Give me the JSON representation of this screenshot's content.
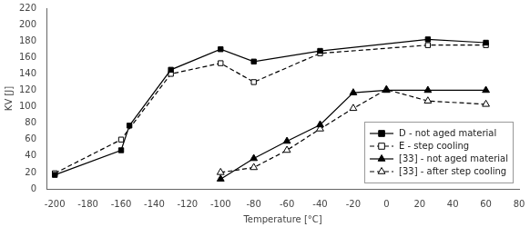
{
  "chart_data": {
    "type": "line",
    "xlabel": "Temperature [°C]",
    "ylabel": "KV [J]",
    "series": [
      {
        "name": "D - not aged material",
        "color": "black",
        "marker": "square",
        "line_style": "solid",
        "x": [
          -200,
          -160,
          -155,
          -130,
          -100,
          -80,
          -40,
          25,
          60
        ],
        "values": [
          17,
          47,
          77,
          145,
          170,
          155,
          168,
          182,
          178
        ]
      },
      {
        "name": "E - step cooling",
        "color": "black",
        "marker": "open_square",
        "line_style": "dashed",
        "x": [
          -200,
          -160,
          -130,
          -100,
          -80,
          -40,
          25,
          60
        ],
        "values": [
          19,
          60,
          140,
          153,
          130,
          165,
          175,
          175
        ]
      },
      {
        "name": "[33] - not aged material",
        "color": "black",
        "marker": "triangle",
        "line_style": "solid",
        "x": [
          -100,
          -80,
          -60,
          -40,
          -20,
          0,
          25,
          60
        ],
        "values": [
          12,
          37,
          58,
          78,
          117,
          120,
          120,
          120
        ]
      },
      {
        "name": "[33] - after step cooling",
        "color": "black",
        "marker": "open_triangle",
        "line_style": "dashed",
        "x": [
          -100,
          -80,
          -60,
          -40,
          -20,
          0,
          25,
          60
        ],
        "values": [
          20,
          26,
          47,
          73,
          98,
          121,
          107,
          103
        ]
      }
    ],
    "xlim": [
      -205,
      80
    ],
    "ylim": [
      0,
      220
    ],
    "xticks": [
      -200,
      -180,
      -160,
      -140,
      -120,
      -100,
      -80,
      -60,
      -40,
      -20,
      0,
      20,
      40,
      60,
      80
    ],
    "yticks": [
      0,
      20,
      40,
      60,
      80,
      100,
      120,
      140,
      160,
      180,
      200,
      220
    ],
    "grid": false,
    "legend": "lower right"
  }
}
